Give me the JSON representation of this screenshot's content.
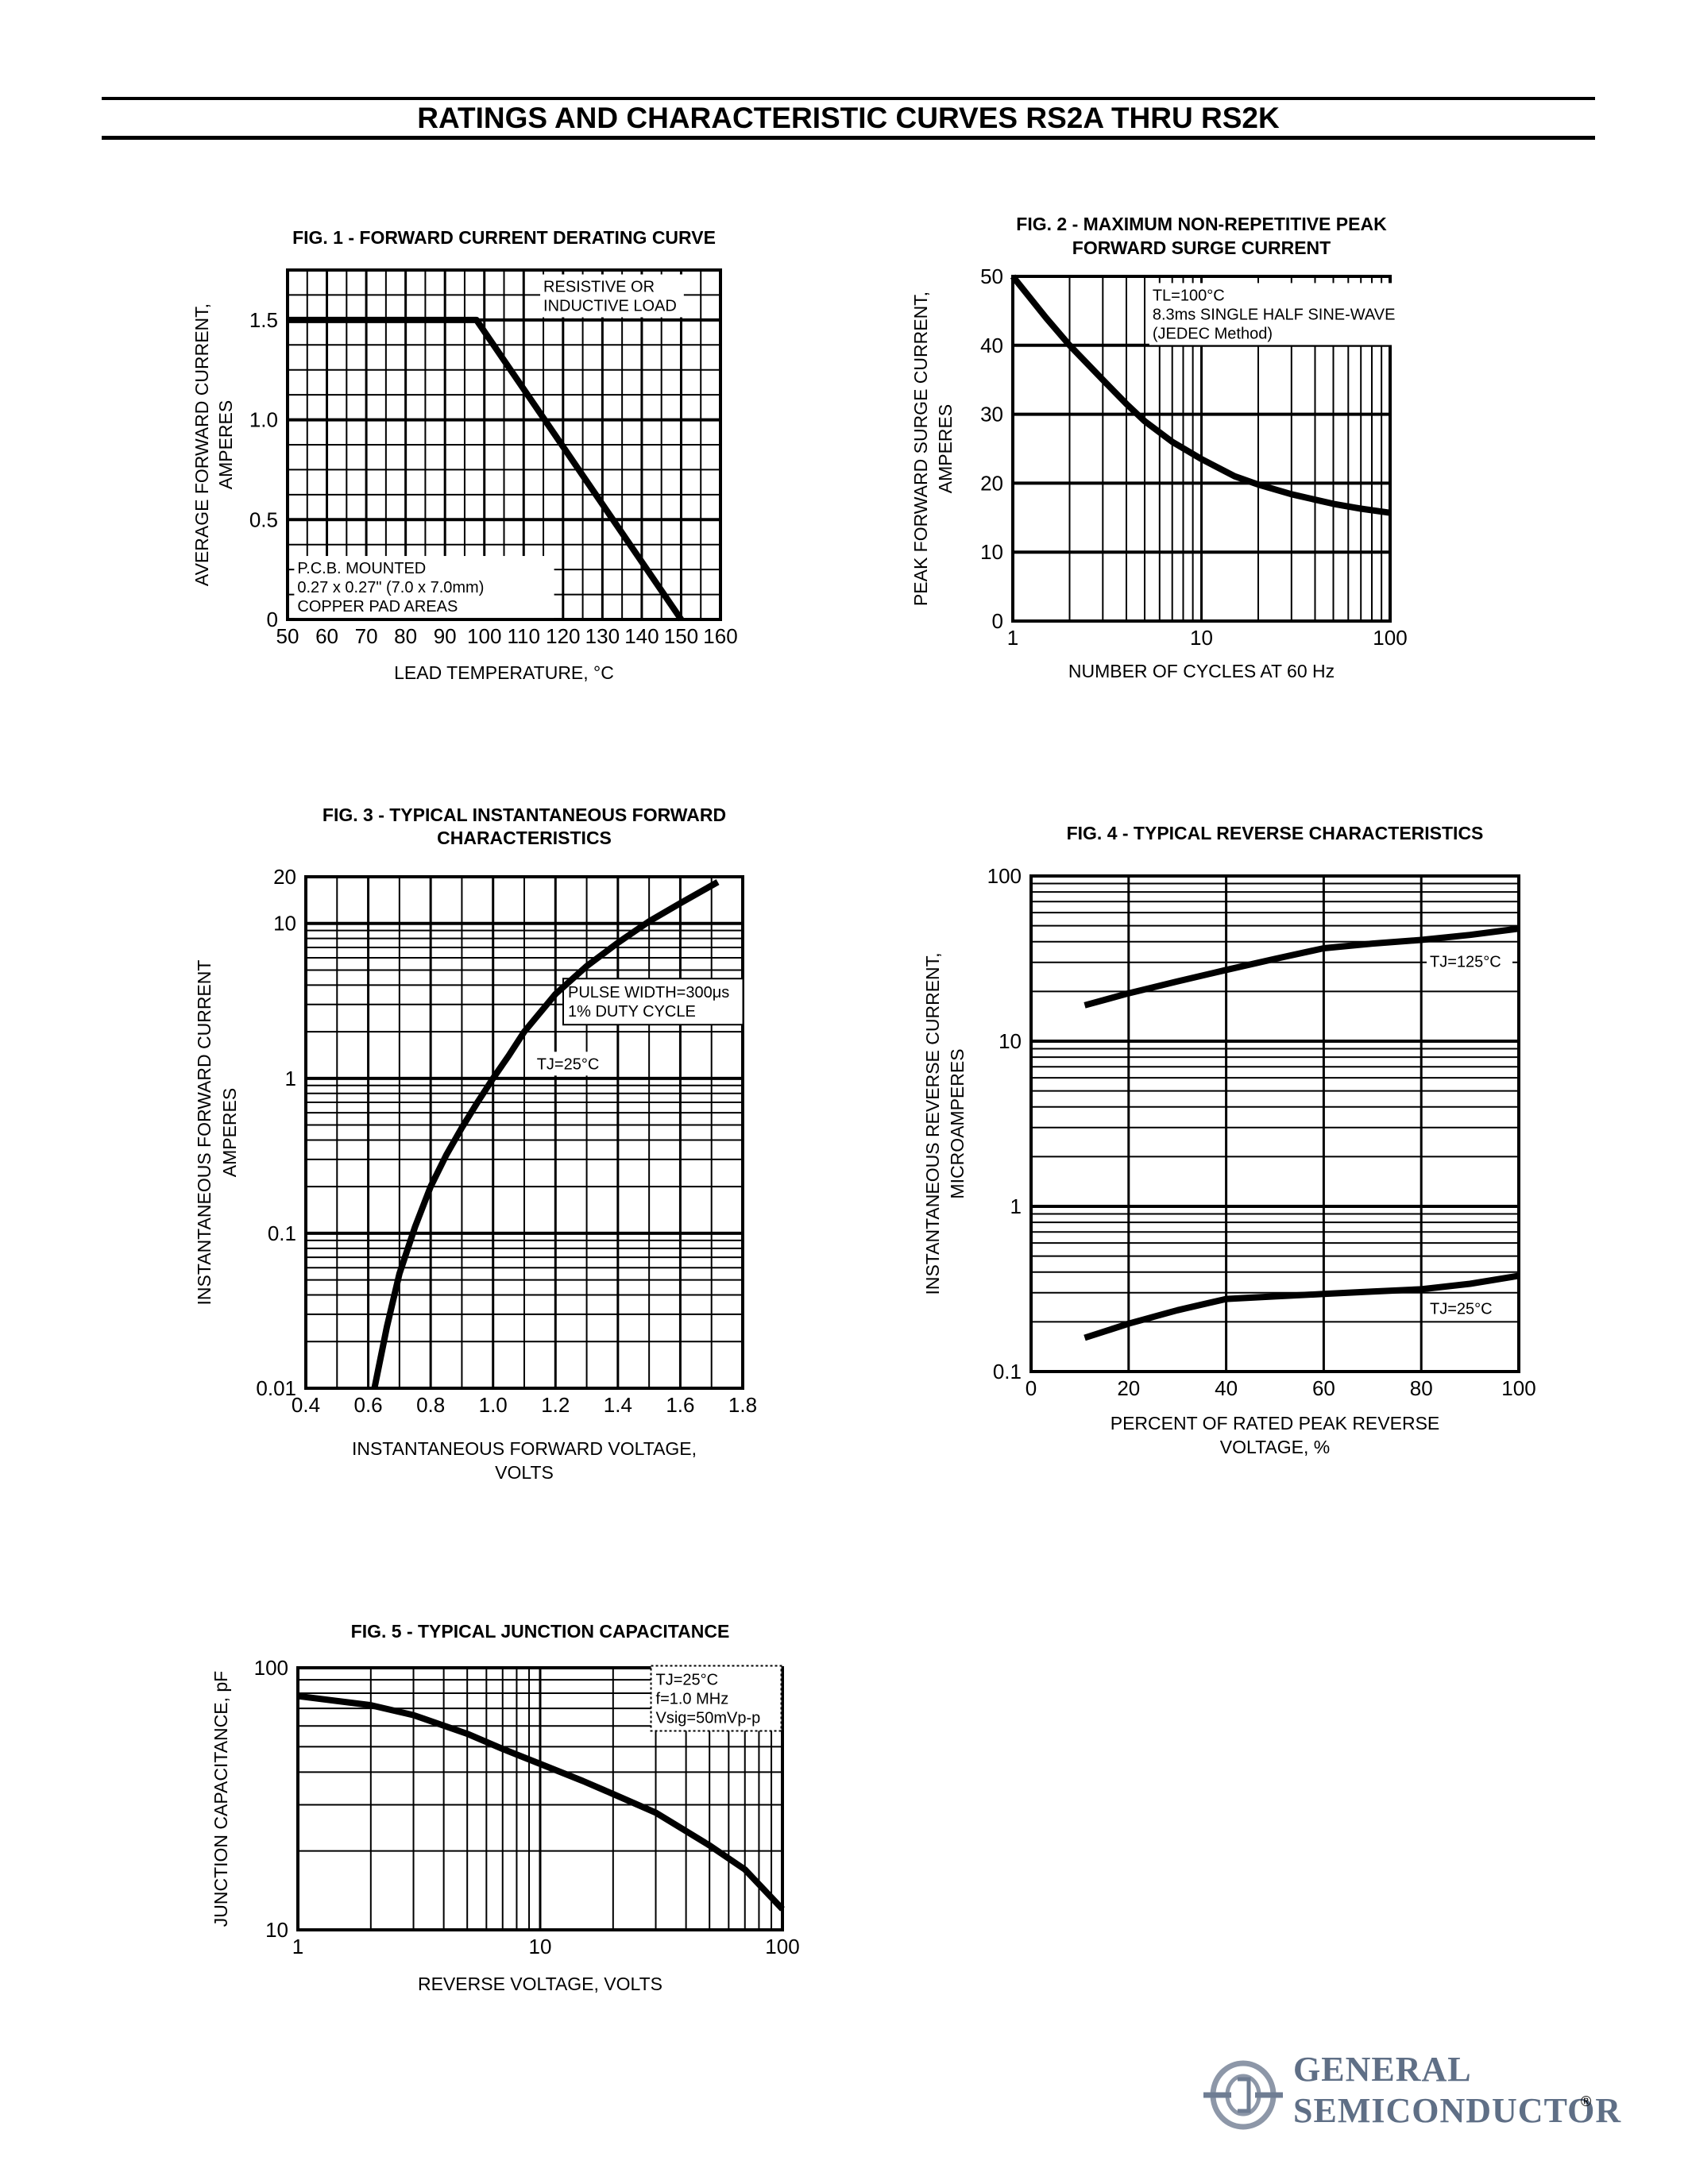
{
  "page": {
    "title": "RATINGS AND CHARACTERISTIC CURVES RS2A THRU RS2K"
  },
  "logo": {
    "line1": "GENERAL",
    "line2": "SEMICONDUCTOR",
    "reg": "®"
  },
  "chart_data": [
    {
      "id": "fig1",
      "type": "line",
      "title": [
        "FIG. 1 - FORWARD CURRENT DERATING CURVE"
      ],
      "xlabel": [
        "LEAD TEMPERATURE, °C"
      ],
      "ylabel": [
        "AVERAGE FORWARD CURRENT,",
        "AMPERES"
      ],
      "xscale": "linear",
      "yscale": "linear",
      "xlim": [
        50,
        160
      ],
      "ylim": [
        0,
        1.75
      ],
      "xticks": [
        50,
        60,
        70,
        80,
        90,
        100,
        110,
        120,
        130,
        140,
        150,
        160
      ],
      "xtick_labels": [
        "50",
        "60",
        "70",
        "80",
        "90",
        "100",
        "110",
        "120",
        "130",
        "140",
        "150",
        "160"
      ],
      "yticks": [
        0,
        0.5,
        1.0,
        1.5
      ],
      "ytick_labels": [
        "0",
        "0.5",
        "1.0",
        "1.5"
      ],
      "grid": true,
      "annotations": [
        {
          "lines": [
            "RESISTIVE OR",
            "INDUCTIVE LOAD"
          ],
          "at": [
            115,
            1.72
          ]
        },
        {
          "lines": [
            "P.C.B. MOUNTED",
            "0.27 x 0.27\" (7.0 x 7.0mm)",
            "COPPER PAD AREAS"
          ],
          "at": [
            52.5,
            0.31
          ]
        }
      ],
      "series": [
        {
          "x": [
            50,
            98,
            150
          ],
          "y": [
            1.5,
            1.5,
            0
          ]
        }
      ]
    },
    {
      "id": "fig2",
      "type": "line",
      "title": [
        "FIG. 2 - MAXIMUM NON-REPETITIVE PEAK",
        "FORWARD SURGE CURRENT"
      ],
      "xlabel": [
        "NUMBER OF CYCLES AT 60 Hz"
      ],
      "ylabel": [
        "PEAK FORWARD SURGE CURRENT,",
        "AMPERES"
      ],
      "xscale": "log",
      "yscale": "linear",
      "xlim": [
        1,
        100
      ],
      "ylim": [
        0,
        50
      ],
      "xticks": [
        1,
        10,
        100
      ],
      "xtick_labels": [
        "1",
        "10",
        "100"
      ],
      "yticks": [
        0,
        10,
        20,
        30,
        40,
        50
      ],
      "ytick_labels": [
        "0",
        "10",
        "20",
        "30",
        "40",
        "50"
      ],
      "grid": true,
      "annotations": [
        {
          "lines": [
            "TL=100°C",
            "8.3ms SINGLE HALF SINE-WAVE",
            "(JEDEC Method)"
          ],
          "at": [
            5.5,
            48.8
          ]
        }
      ],
      "series": [
        {
          "x": [
            1,
            1.5,
            2,
            3,
            4,
            5,
            7,
            10,
            15,
            20,
            30,
            50,
            70,
            100
          ],
          "y": [
            50,
            44,
            40,
            35,
            31.5,
            29,
            26,
            23.5,
            21,
            19.8,
            18.4,
            17,
            16.3,
            15.7
          ]
        }
      ]
    },
    {
      "id": "fig3",
      "type": "line",
      "title": [
        "FIG. 3 - TYPICAL INSTANTANEOUS FORWARD",
        "CHARACTERISTICS"
      ],
      "xlabel": [
        "INSTANTANEOUS FORWARD VOLTAGE,",
        "VOLTS"
      ],
      "ylabel": [
        "INSTANTANEOUS FORWARD CURRENT",
        "AMPERES"
      ],
      "xscale": "linear",
      "yscale": "log",
      "xlim": [
        0.4,
        1.8
      ],
      "ylim": [
        0.01,
        20
      ],
      "xticks": [
        0.4,
        0.6,
        0.8,
        1.0,
        1.2,
        1.4,
        1.6,
        1.8
      ],
      "xtick_labels": [
        "0.4",
        "0.6",
        "0.8",
        "1.0",
        "1.2",
        "1.4",
        "1.6",
        "1.8"
      ],
      "yticks": [
        0.01,
        0.1,
        1,
        10,
        20
      ],
      "ytick_labels": [
        "0.01",
        "0.1",
        "1",
        "10",
        "20"
      ],
      "grid": true,
      "annotations": [
        {
          "lines": [
            "PULSE WIDTH=300μs",
            "1% DUTY CYCLE"
          ],
          "at": [
            1.24,
            4.2
          ],
          "boxed": true
        },
        {
          "lines": [
            "TJ=25°C"
          ],
          "at": [
            1.14,
            1.45
          ]
        }
      ],
      "series": [
        {
          "x": [
            0.62,
            0.66,
            0.7,
            0.75,
            0.8,
            0.85,
            0.9,
            0.95,
            1.0,
            1.05,
            1.1,
            1.2,
            1.3,
            1.4,
            1.5,
            1.6,
            1.72
          ],
          "y": [
            0.01,
            0.025,
            0.055,
            0.11,
            0.2,
            0.32,
            0.48,
            0.7,
            1.0,
            1.4,
            2.0,
            3.5,
            5.3,
            7.5,
            10.3,
            13.5,
            18.5
          ]
        }
      ]
    },
    {
      "id": "fig4",
      "type": "line",
      "title": [
        "FIG. 4 - TYPICAL REVERSE CHARACTERISTICS"
      ],
      "xlabel": [
        "PERCENT OF RATED PEAK REVERSE",
        "VOLTAGE, %"
      ],
      "ylabel": [
        "INSTANTANEOUS REVERSE CURRENT,",
        "MICROAMPERES"
      ],
      "xscale": "linear",
      "yscale": "log",
      "xlim": [
        0,
        100
      ],
      "ylim": [
        0.1,
        100
      ],
      "xticks": [
        0,
        20,
        40,
        60,
        80,
        100
      ],
      "xtick_labels": [
        "0",
        "20",
        "40",
        "60",
        "80",
        "100"
      ],
      "yticks": [
        0.1,
        1,
        10,
        100
      ],
      "ytick_labels": [
        "0.1",
        "1",
        "10",
        "100"
      ],
      "grid": true,
      "series": [
        {
          "label": "TJ=125°C",
          "x": [
            11,
            20,
            30,
            40,
            50,
            60,
            70,
            80,
            90,
            100
          ],
          "y": [
            16.5,
            19.5,
            23,
            27,
            31.5,
            36.5,
            39,
            41,
            44,
            48
          ]
        },
        {
          "label": "TJ=25°C",
          "x": [
            11,
            20,
            30,
            40,
            50,
            60,
            70,
            80,
            90,
            100
          ],
          "y": [
            0.16,
            0.195,
            0.235,
            0.275,
            0.285,
            0.295,
            0.305,
            0.315,
            0.34,
            0.38
          ]
        }
      ]
    },
    {
      "id": "fig5",
      "type": "line",
      "title": [
        "FIG. 5 - TYPICAL JUNCTION CAPACITANCE"
      ],
      "xlabel": [
        "REVERSE VOLTAGE, VOLTS"
      ],
      "ylabel": [
        "JUNCTION CAPACITANCE, pF"
      ],
      "xscale": "log",
      "yscale": "log",
      "xlim": [
        1,
        100
      ],
      "ylim": [
        10,
        100
      ],
      "xticks": [
        1,
        10,
        100
      ],
      "xtick_labels": [
        "1",
        "10",
        "100"
      ],
      "yticks": [
        10,
        100
      ],
      "ytick_labels": [
        "10",
        "100"
      ],
      "grid": true,
      "annotations": [
        {
          "lines": [
            "TJ=25°C",
            "f=1.0 MHz",
            "Vsig=50mVp-p"
          ],
          "at": [
            30,
            99
          ],
          "boxed": true
        }
      ],
      "series": [
        {
          "x": [
            1,
            2,
            3,
            5,
            7,
            10,
            15,
            20,
            30,
            50,
            70,
            100
          ],
          "y": [
            78,
            72,
            66,
            56,
            49,
            43,
            37,
            33,
            28,
            21,
            17,
            12
          ]
        }
      ]
    }
  ]
}
